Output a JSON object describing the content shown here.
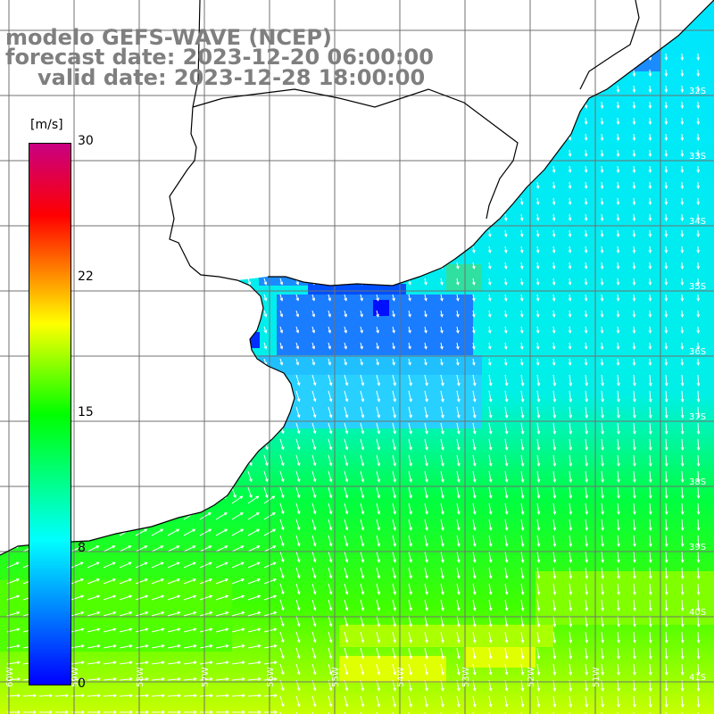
{
  "title": {
    "line1": "modelo GEFS-WAVE (NCEP)",
    "line2": "forecast date: 2023-12-20 06:00:00",
    "line3": "valid date: 2023-12-28 18:00:00"
  },
  "colorbar": {
    "unit": "[m/s]",
    "labels": [
      "30",
      "22",
      "15",
      "8",
      "0"
    ],
    "min": 0,
    "max": 30,
    "colors": [
      "#0000ff",
      "#00ffff",
      "#00ff00",
      "#ffff00",
      "#ff0000",
      "#c80082"
    ]
  },
  "map": {
    "land_color": "#ffffff",
    "grid_color": "#707070",
    "coast_color": "#000000",
    "lat_labels": [
      "32S",
      "33S",
      "34S",
      "35S",
      "36S",
      "37S",
      "38S",
      "39S",
      "40S",
      "41S"
    ],
    "lon_labels": [
      "60W",
      "59W",
      "58W",
      "57W",
      "56W",
      "55W",
      "54W",
      "53W",
      "52W",
      "51W"
    ],
    "variable": "wind speed and direction"
  }
}
